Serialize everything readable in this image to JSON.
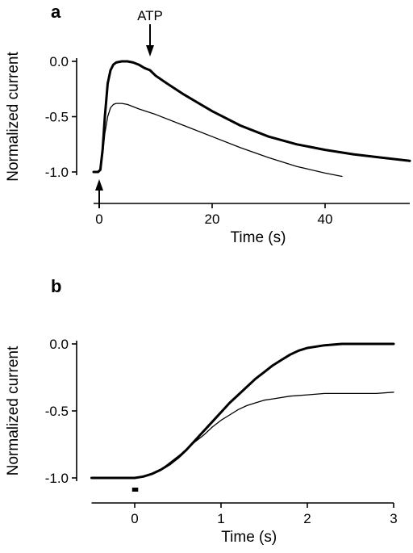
{
  "chart_data": [
    {
      "panel": "a",
      "type": "line",
      "xlabel": "Time (s)",
      "ylabel": "Normalized current",
      "xlim": [
        -1,
        55
      ],
      "ylim": [
        -1.05,
        0.05
      ],
      "xticks": [
        0,
        20,
        40
      ],
      "xtick_labels": [
        "0",
        "20",
        "40"
      ],
      "yticks": [
        0.0,
        -0.5,
        -1.0
      ],
      "ytick_labels": [
        "0.0",
        "-0.5",
        "-1.0"
      ],
      "grid": false,
      "annotations": [
        {
          "text": "ATP",
          "x": 9,
          "arrow": "down"
        },
        {
          "text": "",
          "x": 0,
          "arrow": "up"
        }
      ],
      "series": [
        {
          "style": "thick",
          "x": [
            -1,
            -0.2,
            0.2,
            0.6,
            1,
            1.5,
            2,
            2.5,
            3,
            4,
            5,
            6,
            7,
            8,
            9,
            10,
            12,
            15,
            20,
            25,
            30,
            35,
            40,
            45,
            50,
            55
          ],
          "y": [
            -1.0,
            -1.0,
            -0.98,
            -0.8,
            -0.5,
            -0.2,
            -0.08,
            -0.03,
            -0.01,
            0.0,
            0.0,
            -0.01,
            -0.03,
            -0.06,
            -0.08,
            -0.13,
            -0.2,
            -0.3,
            -0.45,
            -0.58,
            -0.68,
            -0.75,
            -0.8,
            -0.84,
            -0.87,
            -0.9
          ]
        },
        {
          "style": "thin",
          "x": [
            -1,
            -0.2,
            0.2,
            0.6,
            1,
            1.5,
            2,
            2.5,
            3,
            4,
            5,
            7,
            10,
            15,
            20,
            25,
            30,
            35,
            40,
            43
          ],
          "y": [
            -1.0,
            -1.0,
            -0.98,
            -0.85,
            -0.65,
            -0.5,
            -0.42,
            -0.39,
            -0.38,
            -0.38,
            -0.39,
            -0.43,
            -0.48,
            -0.58,
            -0.68,
            -0.78,
            -0.87,
            -0.95,
            -1.01,
            -1.04
          ]
        }
      ]
    },
    {
      "panel": "b",
      "type": "line",
      "xlabel": "Time (s)",
      "ylabel": "Normalized current",
      "xlim": [
        -0.5,
        3
      ],
      "ylim": [
        -1.05,
        0.05
      ],
      "xticks": [
        0,
        1,
        2,
        3
      ],
      "xtick_labels": [
        "0",
        "1",
        "2",
        "3"
      ],
      "yticks": [
        0.0,
        -0.5,
        -1.0
      ],
      "ytick_labels": [
        "0.0",
        "-0.5",
        "-1.0"
      ],
      "grid": false,
      "annotations": [
        {
          "text": "",
          "marker": "bar",
          "x": [
            -0.03,
            0.04
          ]
        }
      ],
      "series": [
        {
          "style": "thick",
          "x": [
            -0.5,
            -0.3,
            -0.1,
            0.0,
            0.1,
            0.2,
            0.3,
            0.4,
            0.5,
            0.6,
            0.7,
            0.8,
            0.9,
            1.0,
            1.1,
            1.2,
            1.3,
            1.4,
            1.5,
            1.6,
            1.7,
            1.8,
            1.9,
            2.0,
            2.2,
            2.4,
            2.6,
            2.8,
            3.0
          ],
          "y": [
            -1.0,
            -1.0,
            -1.0,
            -1.0,
            -0.99,
            -0.97,
            -0.94,
            -0.9,
            -0.85,
            -0.79,
            -0.72,
            -0.65,
            -0.58,
            -0.51,
            -0.44,
            -0.38,
            -0.32,
            -0.26,
            -0.21,
            -0.16,
            -0.12,
            -0.08,
            -0.05,
            -0.03,
            -0.01,
            0.0,
            0.0,
            0.0,
            0.0
          ]
        },
        {
          "style": "thin",
          "x": [
            -0.5,
            -0.3,
            -0.1,
            0.0,
            0.1,
            0.2,
            0.3,
            0.4,
            0.5,
            0.6,
            0.7,
            0.8,
            0.9,
            1.0,
            1.1,
            1.2,
            1.3,
            1.4,
            1.5,
            1.6,
            1.8,
            2.0,
            2.2,
            2.4,
            2.6,
            2.8,
            3.0
          ],
          "y": [
            -1.0,
            -1.0,
            -1.0,
            -1.0,
            -0.99,
            -0.97,
            -0.94,
            -0.89,
            -0.84,
            -0.79,
            -0.73,
            -0.68,
            -0.62,
            -0.57,
            -0.53,
            -0.49,
            -0.46,
            -0.44,
            -0.42,
            -0.41,
            -0.39,
            -0.38,
            -0.37,
            -0.37,
            -0.37,
            -0.37,
            -0.36
          ]
        }
      ]
    }
  ]
}
